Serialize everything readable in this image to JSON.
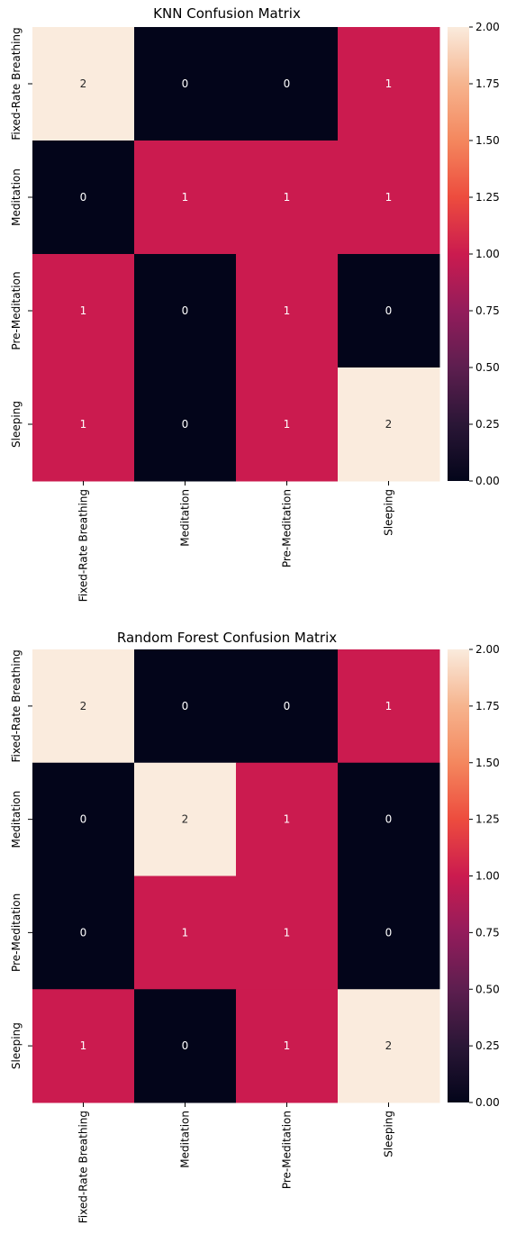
{
  "chart_data": [
    {
      "type": "heatmap",
      "title": "KNN Confusion Matrix",
      "x_labels": [
        "Fixed-Rate Breathing",
        "Meditation",
        "Pre-Meditation",
        "Sleeping"
      ],
      "y_labels": [
        "Fixed-Rate Breathing",
        "Meditation",
        "Pre-Meditation",
        "Sleeping"
      ],
      "values": [
        [
          2,
          0,
          0,
          1
        ],
        [
          0,
          1,
          1,
          1
        ],
        [
          1,
          0,
          1,
          0
        ],
        [
          1,
          0,
          1,
          2
        ]
      ],
      "colorbar": {
        "range": [
          0,
          2
        ],
        "ticks": [
          "0.00",
          "0.25",
          "0.50",
          "0.75",
          "1.00",
          "1.25",
          "1.50",
          "1.75",
          "2.00"
        ]
      },
      "colormap": "rocket"
    },
    {
      "type": "heatmap",
      "title": "Random Forest Confusion Matrix",
      "x_labels": [
        "Fixed-Rate Breathing",
        "Meditation",
        "Pre-Meditation",
        "Sleeping"
      ],
      "y_labels": [
        "Fixed-Rate Breathing",
        "Meditation",
        "Pre-Meditation",
        "Sleeping"
      ],
      "values": [
        [
          2,
          0,
          0,
          1
        ],
        [
          0,
          2,
          1,
          0
        ],
        [
          0,
          1,
          1,
          0
        ],
        [
          1,
          0,
          1,
          2
        ]
      ],
      "colorbar": {
        "range": [
          0,
          2
        ],
        "ticks": [
          "0.00",
          "0.25",
          "0.50",
          "0.75",
          "1.00",
          "1.25",
          "1.50",
          "1.75",
          "2.00"
        ]
      },
      "colormap": "rocket"
    }
  ],
  "colors": {
    "low": "#03051a",
    "mid": "#cb1b4f",
    "high": "#faebdd",
    "text_on_dark": "#ffffff",
    "text_on_light": "#262626"
  }
}
